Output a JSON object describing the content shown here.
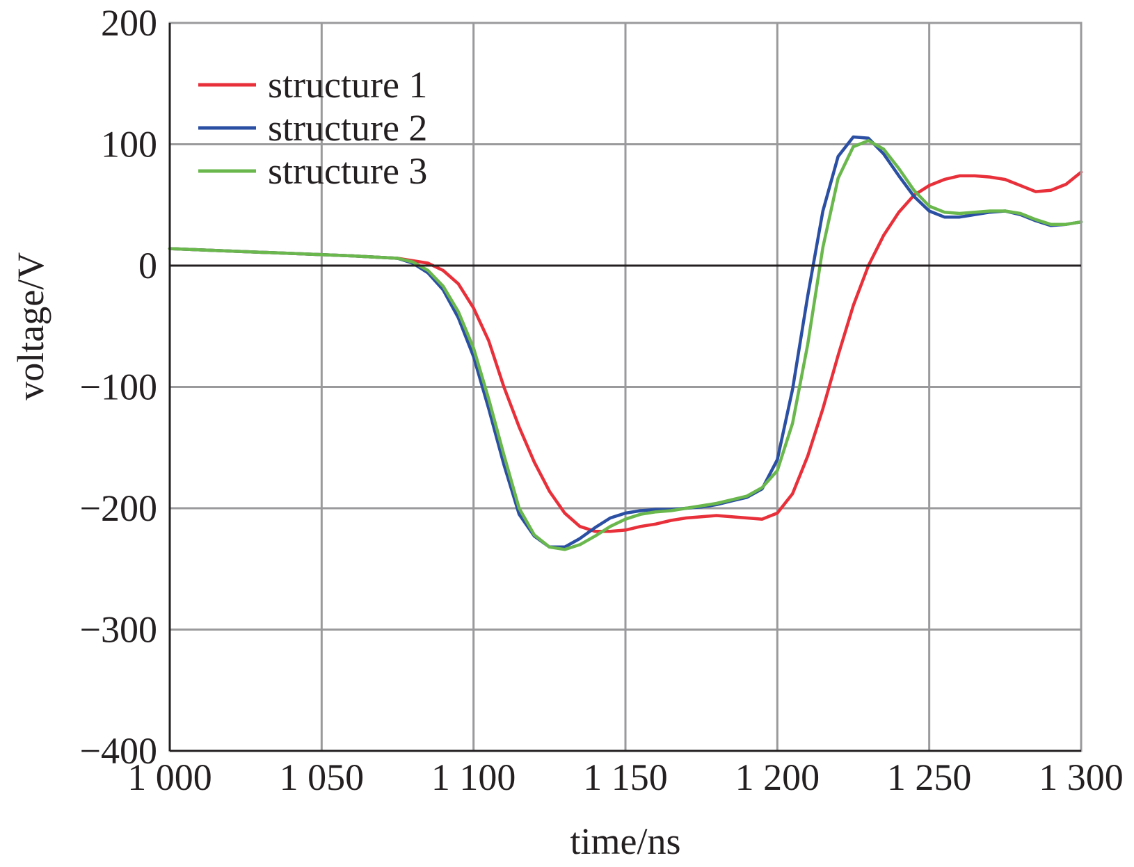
{
  "chart_data": {
    "type": "line",
    "xlabel": "time/ns",
    "ylabel": "voltage/V",
    "xlim": [
      1000,
      1300
    ],
    "ylim": [
      -400,
      200
    ],
    "x_ticks": [
      1000,
      1050,
      1100,
      1150,
      1200,
      1250,
      1300
    ],
    "x_tick_labels": [
      "1 000",
      "1 050",
      "1 100",
      "1 150",
      "1 200",
      "1 250",
      "1 300"
    ],
    "y_ticks": [
      200,
      100,
      0,
      -100,
      -200,
      -300,
      -400
    ],
    "y_tick_labels": [
      "200",
      "100",
      "0",
      "−100",
      "−200",
      "−300",
      "−400"
    ],
    "grid": true,
    "legend_position": "top-left",
    "series": [
      {
        "name": "structure 1",
        "color": "#e8303a",
        "x": [
          1000,
          1020,
          1040,
          1060,
          1075,
          1085,
          1090,
          1095,
          1100,
          1105,
          1110,
          1115,
          1120,
          1125,
          1130,
          1135,
          1140,
          1145,
          1150,
          1155,
          1160,
          1165,
          1170,
          1175,
          1180,
          1185,
          1190,
          1195,
          1200,
          1205,
          1210,
          1215,
          1220,
          1225,
          1230,
          1235,
          1240,
          1245,
          1250,
          1255,
          1260,
          1265,
          1270,
          1275,
          1280,
          1285,
          1290,
          1295,
          1300
        ],
        "y": [
          14,
          12,
          10,
          8,
          6,
          2,
          -4,
          -15,
          -35,
          -62,
          -100,
          -133,
          -162,
          -186,
          -204,
          -215,
          -219,
          -219,
          -218,
          -215,
          -213,
          -210,
          -208,
          -207,
          -206,
          -207,
          -208,
          -209,
          -204,
          -188,
          -157,
          -118,
          -74,
          -33,
          0,
          25,
          44,
          58,
          66,
          71,
          74,
          74,
          73,
          71,
          66,
          61,
          62,
          67,
          77
        ]
      },
      {
        "name": "structure 2",
        "color": "#2b4fa3",
        "x": [
          1000,
          1020,
          1040,
          1060,
          1075,
          1080,
          1085,
          1090,
          1095,
          1100,
          1105,
          1110,
          1115,
          1120,
          1125,
          1130,
          1135,
          1140,
          1145,
          1150,
          1155,
          1160,
          1165,
          1170,
          1175,
          1180,
          1185,
          1190,
          1195,
          1200,
          1205,
          1210,
          1215,
          1220,
          1225,
          1230,
          1235,
          1240,
          1245,
          1250,
          1255,
          1260,
          1265,
          1270,
          1275,
          1280,
          1285,
          1290,
          1295,
          1300
        ],
        "y": [
          14,
          12,
          10,
          8,
          6,
          2,
          -6,
          -20,
          -43,
          -75,
          -118,
          -164,
          -205,
          -223,
          -232,
          -232,
          -225,
          -216,
          -208,
          -204,
          -202,
          -201,
          -201,
          -200,
          -199,
          -197,
          -194,
          -191,
          -184,
          -160,
          -102,
          -25,
          45,
          90,
          106,
          105,
          92,
          74,
          57,
          45,
          40,
          40,
          42,
          44,
          45,
          42,
          37,
          33,
          34,
          36
        ]
      },
      {
        "name": "structure 3",
        "color": "#6ab84d",
        "x": [
          1000,
          1020,
          1040,
          1060,
          1075,
          1080,
          1085,
          1090,
          1095,
          1100,
          1105,
          1110,
          1115,
          1120,
          1125,
          1130,
          1135,
          1140,
          1145,
          1150,
          1155,
          1160,
          1165,
          1170,
          1175,
          1180,
          1185,
          1190,
          1195,
          1200,
          1205,
          1210,
          1215,
          1220,
          1225,
          1230,
          1235,
          1240,
          1245,
          1250,
          1255,
          1260,
          1265,
          1270,
          1275,
          1280,
          1285,
          1290,
          1295,
          1300
        ],
        "y": [
          14,
          12,
          10,
          8,
          6,
          3,
          -4,
          -17,
          -38,
          -68,
          -110,
          -156,
          -200,
          -222,
          -232,
          -234,
          -230,
          -223,
          -215,
          -209,
          -205,
          -203,
          -202,
          -200,
          -198,
          -196,
          -193,
          -190,
          -183,
          -169,
          -130,
          -65,
          15,
          72,
          98,
          103,
          96,
          80,
          62,
          49,
          44,
          43,
          44,
          45,
          45,
          43,
          38,
          34,
          34,
          36
        ]
      }
    ]
  }
}
